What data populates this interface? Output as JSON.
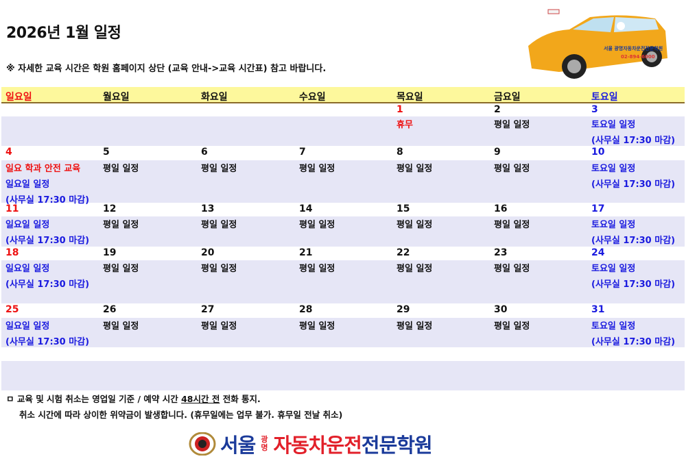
{
  "title": "2026년 1월 일정",
  "note": "※ 자세한 교육 시간은 학원 홈페이지 상단 (교육 안내->교육 시간표) 참고 바랍니다.",
  "car_image": {
    "phone": "02-894-6000",
    "label": "서울 광명자동차운전전문학원"
  },
  "weekdays": [
    {
      "label": "일요일",
      "color": "red"
    },
    {
      "label": "월요일",
      "color": "black"
    },
    {
      "label": "화요일",
      "color": "black"
    },
    {
      "label": "수요일",
      "color": "black"
    },
    {
      "label": "목요일",
      "color": "black"
    },
    {
      "label": "금요일",
      "color": "black"
    },
    {
      "label": "토요일",
      "color": "blue"
    }
  ],
  "weeks": [
    [
      null,
      null,
      null,
      null,
      {
        "date": "1",
        "color": "red",
        "lines": [
          {
            "text": "휴무",
            "color": "red"
          }
        ]
      },
      {
        "date": "2",
        "color": "black",
        "lines": [
          {
            "text": "평일 일정",
            "color": "black"
          }
        ]
      },
      {
        "date": "3",
        "color": "blue",
        "lines": [
          {
            "text": "토요일 일정",
            "color": "blue"
          },
          {
            "text": "(사무실 17:30 마감)",
            "color": "blue"
          }
        ]
      }
    ],
    [
      {
        "date": "4",
        "color": "red",
        "lines": [
          {
            "text": "일요 학과 안전 교육",
            "color": "red"
          },
          {
            "text": "일요일 일정",
            "color": "blue"
          },
          {
            "text": "(사무실 17:30 마감)",
            "color": "blue"
          }
        ]
      },
      {
        "date": "5",
        "color": "black",
        "lines": [
          {
            "text": "평일 일정",
            "color": "black"
          }
        ]
      },
      {
        "date": "6",
        "color": "black",
        "lines": [
          {
            "text": "평일 일정",
            "color": "black"
          }
        ]
      },
      {
        "date": "7",
        "color": "black",
        "lines": [
          {
            "text": "평일 일정",
            "color": "black"
          }
        ]
      },
      {
        "date": "8",
        "color": "black",
        "lines": [
          {
            "text": "평일 일정",
            "color": "black"
          }
        ]
      },
      {
        "date": "9",
        "color": "black",
        "lines": [
          {
            "text": "평일 일정",
            "color": "black"
          }
        ]
      },
      {
        "date": "10",
        "color": "blue",
        "lines": [
          {
            "text": "토요일 일정",
            "color": "blue"
          },
          {
            "text": "(사무실 17:30 마감)",
            "color": "blue"
          }
        ]
      }
    ],
    [
      {
        "date": "11",
        "color": "red",
        "lines": [
          {
            "text": "일요일 일정",
            "color": "blue"
          },
          {
            "text": "(사무실 17:30 마감)",
            "color": "blue"
          }
        ]
      },
      {
        "date": "12",
        "color": "black",
        "lines": [
          {
            "text": "평일 일정",
            "color": "black"
          }
        ]
      },
      {
        "date": "13",
        "color": "black",
        "lines": [
          {
            "text": "평일 일정",
            "color": "black"
          }
        ]
      },
      {
        "date": "14",
        "color": "black",
        "lines": [
          {
            "text": "평일 일정",
            "color": "black"
          }
        ]
      },
      {
        "date": "15",
        "color": "black",
        "lines": [
          {
            "text": "평일 일정",
            "color": "black"
          }
        ]
      },
      {
        "date": "16",
        "color": "black",
        "lines": [
          {
            "text": "평일 일정",
            "color": "black"
          }
        ]
      },
      {
        "date": "17",
        "color": "blue",
        "lines": [
          {
            "text": "토요일 일정",
            "color": "blue"
          },
          {
            "text": "(사무실 17:30 마감)",
            "color": "blue"
          }
        ]
      }
    ],
    [
      {
        "date": "18",
        "color": "red",
        "lines": [
          {
            "text": "일요일 일정",
            "color": "blue"
          },
          {
            "text": "(사무실 17:30 마감)",
            "color": "blue"
          }
        ]
      },
      {
        "date": "19",
        "color": "black",
        "lines": [
          {
            "text": "평일 일정",
            "color": "black"
          }
        ]
      },
      {
        "date": "20",
        "color": "black",
        "lines": [
          {
            "text": "평일 일정",
            "color": "black"
          }
        ]
      },
      {
        "date": "21",
        "color": "black",
        "lines": [
          {
            "text": "평일 일정",
            "color": "black"
          }
        ]
      },
      {
        "date": "22",
        "color": "black",
        "lines": [
          {
            "text": "평일 일정",
            "color": "black"
          }
        ]
      },
      {
        "date": "23",
        "color": "black",
        "lines": [
          {
            "text": "평일 일정",
            "color": "black"
          }
        ]
      },
      {
        "date": "24",
        "color": "blue",
        "lines": [
          {
            "text": "토요일 일정",
            "color": "blue"
          },
          {
            "text": "(사무실 17:30 마감)",
            "color": "blue"
          }
        ]
      }
    ],
    [
      {
        "date": "25",
        "color": "red",
        "lines": [
          {
            "text": "일요일 일정",
            "color": "blue"
          },
          {
            "text": "(사무실 17:30 마감)",
            "color": "blue"
          }
        ]
      },
      {
        "date": "26",
        "color": "black",
        "lines": [
          {
            "text": "평일 일정",
            "color": "black"
          }
        ]
      },
      {
        "date": "27",
        "color": "black",
        "lines": [
          {
            "text": "평일 일정",
            "color": "black"
          }
        ]
      },
      {
        "date": "28",
        "color": "black",
        "lines": [
          {
            "text": "평일 일정",
            "color": "black"
          }
        ]
      },
      {
        "date": "29",
        "color": "black",
        "lines": [
          {
            "text": "평일 일정",
            "color": "black"
          }
        ]
      },
      {
        "date": "30",
        "color": "black",
        "lines": [
          {
            "text": "평일 일정",
            "color": "black"
          }
        ]
      },
      {
        "date": "31",
        "color": "blue",
        "lines": [
          {
            "text": "토요일 일정",
            "color": "blue"
          },
          {
            "text": "(사무실 17:30 마감)",
            "color": "blue"
          }
        ]
      }
    ]
  ],
  "footer": {
    "line1_pre": "ㅁ 교육 및 시험 취소는 영업일 기준 / 예약 시간 ",
    "line1_em": "48시간 전",
    "line1_post": " 전화 통지.",
    "line2": "취소 시간에 따라 상이한 위약금이 발생합니다. (휴무일에는 업무 불가. 휴무일 전날 취소)"
  },
  "logo": {
    "part1": "서울",
    "small_top": "광",
    "small_bottom": "명",
    "part2": "자동차운전",
    "part3": "전문학원"
  },
  "colors": {
    "header_bg": "#fdf89c",
    "band_bg": "#e6e6f6",
    "sunday": "#ee1111",
    "saturday": "#1a1adf",
    "logo_blue": "#1a3a9a",
    "logo_red": "#e2202a"
  }
}
